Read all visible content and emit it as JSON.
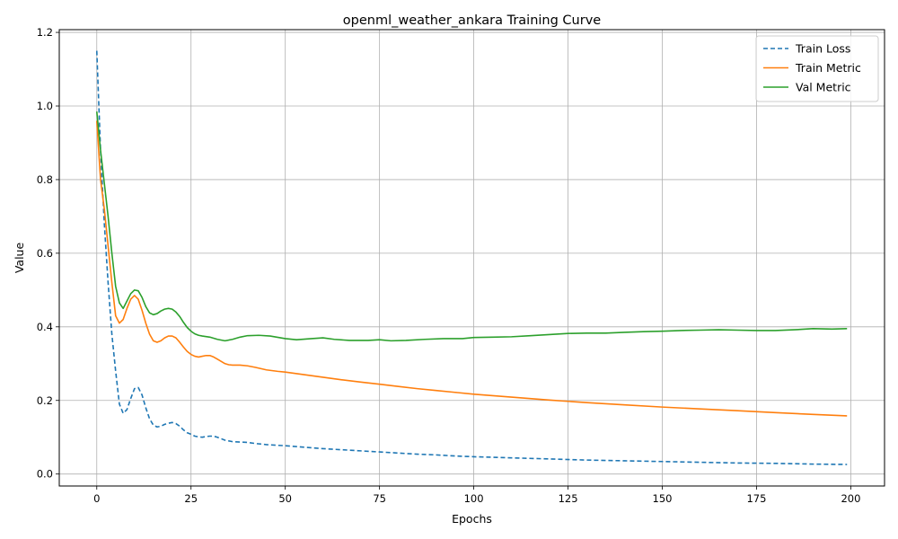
{
  "chart_data": {
    "type": "line",
    "title": "openml_weather_ankara Training Curve",
    "xlabel": "Epochs",
    "ylabel": "Value",
    "xlim": [
      -9.95,
      208.95
    ],
    "ylim": [
      -0.0325,
      1.2075
    ],
    "xticks": [
      0,
      25,
      50,
      75,
      100,
      125,
      150,
      175,
      200
    ],
    "yticks": [
      0.0,
      0.2,
      0.4,
      0.6,
      0.8,
      1.0,
      1.2
    ],
    "xtick_labels": [
      "0",
      "25",
      "50",
      "75",
      "100",
      "125",
      "150",
      "175",
      "200"
    ],
    "ytick_labels": [
      "0.0",
      "0.2",
      "0.4",
      "0.6",
      "0.8",
      "1.0",
      "1.2"
    ],
    "grid": true,
    "legend_position": "top-right",
    "series": [
      {
        "name": "Train Loss",
        "color": "#1f77b4",
        "style": "dashed",
        "x": [
          0,
          1,
          2,
          3,
          4,
          5,
          6,
          7,
          8,
          9,
          10,
          11,
          12,
          13,
          14,
          15,
          16,
          17,
          18,
          19,
          20,
          21,
          22,
          23,
          24,
          25,
          26,
          27,
          28,
          29,
          30,
          31,
          32,
          33,
          34,
          35,
          36,
          38,
          40,
          42,
          45,
          48,
          50,
          55,
          60,
          65,
          70,
          75,
          80,
          85,
          90,
          95,
          100,
          110,
          120,
          130,
          140,
          150,
          160,
          170,
          180,
          190,
          199
        ],
        "y": [
          1.15,
          0.88,
          0.68,
          0.52,
          0.38,
          0.28,
          0.19,
          0.165,
          0.175,
          0.205,
          0.232,
          0.235,
          0.215,
          0.18,
          0.15,
          0.133,
          0.128,
          0.13,
          0.135,
          0.138,
          0.14,
          0.137,
          0.13,
          0.12,
          0.112,
          0.108,
          0.103,
          0.101,
          0.1,
          0.102,
          0.103,
          0.103,
          0.1,
          0.096,
          0.092,
          0.09,
          0.088,
          0.087,
          0.086,
          0.083,
          0.08,
          0.078,
          0.077,
          0.073,
          0.069,
          0.066,
          0.063,
          0.06,
          0.057,
          0.054,
          0.052,
          0.049,
          0.047,
          0.044,
          0.041,
          0.038,
          0.036,
          0.034,
          0.032,
          0.03,
          0.029,
          0.027,
          0.026
        ]
      },
      {
        "name": "Train Metric",
        "color": "#ff7f0e",
        "style": "solid",
        "x": [
          0,
          1,
          2,
          3,
          4,
          5,
          6,
          7,
          8,
          9,
          10,
          11,
          12,
          13,
          14,
          15,
          16,
          17,
          18,
          19,
          20,
          21,
          22,
          23,
          24,
          25,
          26,
          27,
          28,
          29,
          30,
          31,
          32,
          33,
          34,
          35,
          36,
          38,
          40,
          42,
          45,
          48,
          50,
          55,
          60,
          65,
          70,
          75,
          80,
          85,
          90,
          95,
          100,
          110,
          120,
          130,
          140,
          150,
          160,
          170,
          180,
          190,
          199
        ],
        "y": [
          0.96,
          0.8,
          0.72,
          0.62,
          0.52,
          0.43,
          0.41,
          0.42,
          0.45,
          0.475,
          0.485,
          0.475,
          0.445,
          0.41,
          0.38,
          0.362,
          0.358,
          0.362,
          0.37,
          0.375,
          0.375,
          0.37,
          0.358,
          0.345,
          0.333,
          0.325,
          0.32,
          0.318,
          0.32,
          0.322,
          0.322,
          0.318,
          0.312,
          0.306,
          0.3,
          0.297,
          0.296,
          0.296,
          0.294,
          0.29,
          0.283,
          0.279,
          0.277,
          0.27,
          0.263,
          0.256,
          0.25,
          0.244,
          0.238,
          0.232,
          0.227,
          0.222,
          0.217,
          0.209,
          0.201,
          0.194,
          0.188,
          0.182,
          0.177,
          0.172,
          0.167,
          0.162,
          0.158
        ]
      },
      {
        "name": "Val Metric",
        "color": "#2ca02c",
        "style": "solid",
        "x": [
          0,
          1,
          2,
          3,
          4,
          5,
          6,
          7,
          8,
          9,
          10,
          11,
          12,
          13,
          14,
          15,
          16,
          17,
          18,
          19,
          20,
          21,
          22,
          23,
          24,
          25,
          26,
          27,
          28,
          30,
          32,
          34,
          36,
          38,
          40,
          43,
          46,
          50,
          53,
          57,
          60,
          63,
          67,
          72,
          75,
          78,
          82,
          87,
          92,
          97,
          100,
          105,
          110,
          115,
          120,
          125,
          130,
          135,
          140,
          145,
          150,
          155,
          160,
          165,
          170,
          175,
          180,
          185,
          190,
          195,
          199
        ],
        "y": [
          0.985,
          0.88,
          0.79,
          0.7,
          0.6,
          0.51,
          0.465,
          0.45,
          0.47,
          0.49,
          0.5,
          0.498,
          0.48,
          0.455,
          0.438,
          0.433,
          0.436,
          0.443,
          0.448,
          0.45,
          0.448,
          0.44,
          0.428,
          0.412,
          0.398,
          0.388,
          0.381,
          0.377,
          0.375,
          0.372,
          0.366,
          0.362,
          0.366,
          0.372,
          0.376,
          0.377,
          0.375,
          0.368,
          0.365,
          0.368,
          0.37,
          0.366,
          0.363,
          0.363,
          0.365,
          0.362,
          0.363,
          0.366,
          0.368,
          0.368,
          0.371,
          0.372,
          0.373,
          0.376,
          0.379,
          0.382,
          0.383,
          0.383,
          0.385,
          0.387,
          0.388,
          0.39,
          0.391,
          0.392,
          0.391,
          0.39,
          0.39,
          0.392,
          0.395,
          0.394,
          0.395
        ]
      }
    ]
  }
}
